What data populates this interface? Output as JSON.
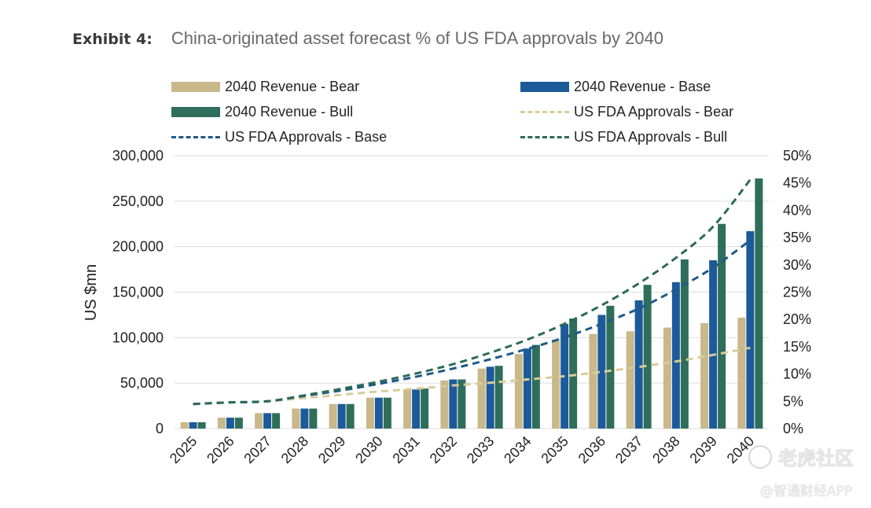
{
  "header": {
    "exhibit_label": "Exhibit 4:",
    "title": "China-originated asset forecast % of US FDA approvals by 2040"
  },
  "legend": [
    {
      "label": "2040 Revenue - Bear",
      "kind": "bar",
      "color": "#c8b88a"
    },
    {
      "label": "2040 Revenue - Base",
      "kind": "bar",
      "color": "#1c5a9a"
    },
    {
      "label": "2040 Revenue - Bull",
      "kind": "bar",
      "color": "#2e6e5a"
    },
    {
      "label": "US FDA Approvals - Bear",
      "kind": "dash",
      "color": "#d8cc9a"
    },
    {
      "label": "US FDA Approvals - Base",
      "kind": "dash",
      "color": "#1e5a88"
    },
    {
      "label": "US FDA Approvals - Bull",
      "kind": "dash",
      "color": "#2c6a58"
    }
  ],
  "chart_data": {
    "type": "bar",
    "title": "China-originated asset forecast % of US FDA approvals by 2040",
    "categories": [
      "2025",
      "2026",
      "2027",
      "2028",
      "2029",
      "2030",
      "2031",
      "2032",
      "2033",
      "2034",
      "2035",
      "2036",
      "2037",
      "2038",
      "2039",
      "2040"
    ],
    "ylabel": "US $mn",
    "ylim": [
      0,
      300000
    ],
    "yticks": [
      "0",
      "50,000",
      "100,000",
      "150,000",
      "200,000",
      "250,000",
      "300,000"
    ],
    "y2lim": [
      0,
      50
    ],
    "y2ticks": [
      "0%",
      "5%",
      "10%",
      "15%",
      "20%",
      "25%",
      "30%",
      "35%",
      "40%",
      "45%",
      "50%"
    ],
    "grid": true,
    "legend_position": "top",
    "series": [
      {
        "name": "2040 Revenue - Bear",
        "type": "bar",
        "axis": "left",
        "color": "#c8b88a",
        "values": [
          7000,
          12000,
          17000,
          22000,
          27000,
          34000,
          43000,
          53000,
          66000,
          82000,
          98000,
          104000,
          107000,
          111000,
          116000,
          122000
        ]
      },
      {
        "name": "2040 Revenue - Base",
        "type": "bar",
        "axis": "left",
        "color": "#1c5a9a",
        "values": [
          7000,
          12000,
          17000,
          22000,
          27000,
          34000,
          43000,
          54000,
          68000,
          88000,
          115000,
          125000,
          141000,
          161000,
          185000,
          217000
        ]
      },
      {
        "name": "2040 Revenue - Bull",
        "type": "bar",
        "axis": "left",
        "color": "#2e6e5a",
        "values": [
          7000,
          12000,
          17000,
          22000,
          27000,
          34000,
          44000,
          54000,
          69000,
          92000,
          121000,
          135000,
          158000,
          186000,
          225000,
          275000
        ]
      },
      {
        "name": "US FDA Approvals - Bear",
        "type": "line",
        "axis": "right",
        "color": "#d8cc9a",
        "values": [
          4.5,
          4.8,
          5.0,
          5.6,
          6.2,
          6.8,
          7.3,
          7.9,
          8.4,
          9.0,
          9.6,
          10.4,
          11.3,
          12.3,
          13.5,
          14.8
        ]
      },
      {
        "name": "US FDA Approvals - Base",
        "type": "line",
        "axis": "right",
        "color": "#1e5a88",
        "values": [
          4.5,
          4.8,
          5.0,
          6.0,
          7.0,
          8.2,
          9.5,
          11.0,
          12.7,
          14.6,
          16.7,
          19.2,
          22.0,
          25.5,
          29.5,
          34.5
        ]
      },
      {
        "name": "US FDA Approvals - Bull",
        "type": "line",
        "axis": "right",
        "color": "#2c6a58",
        "values": [
          4.5,
          4.8,
          5.0,
          6.1,
          7.3,
          8.6,
          10.1,
          11.8,
          13.9,
          16.3,
          19.2,
          22.6,
          26.6,
          31.3,
          37.0,
          45.6
        ]
      }
    ]
  },
  "watermarks": {
    "primary": "老虎社区",
    "secondary": "@智通财经APP"
  }
}
